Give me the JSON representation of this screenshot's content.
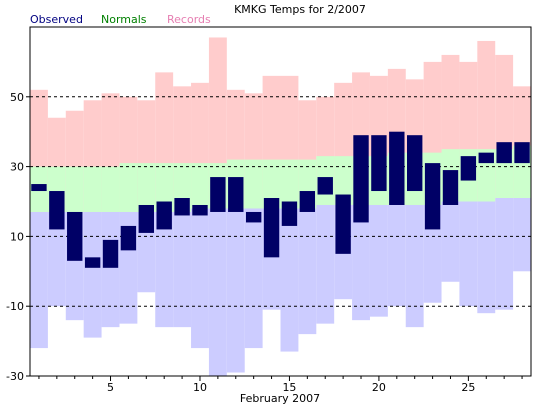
{
  "chart_data": {
    "type": "bar",
    "title": "KMKG Temps for 2/2007",
    "xlabel": "February 2007",
    "ylabel": "",
    "legend": {
      "placement": "top-left",
      "entries": [
        "Observed",
        "Normals",
        "Records"
      ]
    },
    "xlim": [
      0.5,
      28.5
    ],
    "ylim": [
      -30,
      70
    ],
    "x_ticks": [
      5,
      10,
      15,
      20,
      25
    ],
    "y_ticks": [
      -30,
      -10,
      10,
      30,
      50
    ],
    "grid": "dashed horizontal at -10, 10, 30, 50",
    "colors": {
      "observed": "#000066",
      "normals": "#ccffcc",
      "records": "#ffcccc",
      "record_low_band": "#ccccff",
      "observed_legend": "#000080",
      "normals_legend": "#008000",
      "records_legend": "#e67fb2"
    },
    "days": [
      1,
      2,
      3,
      4,
      5,
      6,
      7,
      8,
      9,
      10,
      11,
      12,
      13,
      14,
      15,
      16,
      17,
      18,
      19,
      20,
      21,
      22,
      23,
      24,
      25,
      26,
      27,
      28
    ],
    "series": [
      {
        "name": "Observed",
        "high": [
          25,
          23,
          17,
          4,
          9,
          13,
          19,
          20,
          21,
          19,
          27,
          27,
          17,
          21,
          20,
          23,
          27,
          22,
          39,
          39,
          40,
          39,
          31,
          29,
          33,
          34,
          37,
          37
        ],
        "low": [
          23,
          12,
          3,
          1,
          1,
          6,
          11,
          12,
          16,
          16,
          17,
          17,
          14,
          4,
          13,
          17,
          22,
          5,
          14,
          23,
          19,
          23,
          12,
          19,
          26,
          31,
          31,
          31
        ]
      },
      {
        "name": "Normals",
        "high": [
          30,
          30,
          30,
          30,
          30,
          31,
          31,
          31,
          31,
          31,
          31,
          32,
          32,
          32,
          32,
          32,
          33,
          33,
          33,
          33,
          34,
          34,
          34,
          35,
          35,
          35,
          35,
          36
        ],
        "low": [
          17,
          17,
          17,
          17,
          17,
          17,
          17,
          17,
          17,
          18,
          18,
          18,
          18,
          18,
          18,
          18,
          19,
          19,
          19,
          19,
          19,
          19,
          19,
          20,
          20,
          20,
          21,
          21
        ]
      },
      {
        "name": "Records",
        "high": [
          52,
          44,
          46,
          49,
          51,
          50,
          49,
          57,
          53,
          54,
          67,
          52,
          51,
          56,
          56,
          49,
          50,
          54,
          57,
          56,
          58,
          55,
          60,
          62,
          60,
          66,
          62,
          53
        ],
        "low": [
          -22,
          -10,
          -14,
          -19,
          -16,
          -15,
          -6,
          -16,
          -16,
          -22,
          -34,
          -29,
          -22,
          -11,
          -23,
          -18,
          -15,
          -8,
          -14,
          -13,
          -10,
          -16,
          -9,
          -3,
          -10,
          -12,
          -11,
          0
        ]
      }
    ]
  }
}
